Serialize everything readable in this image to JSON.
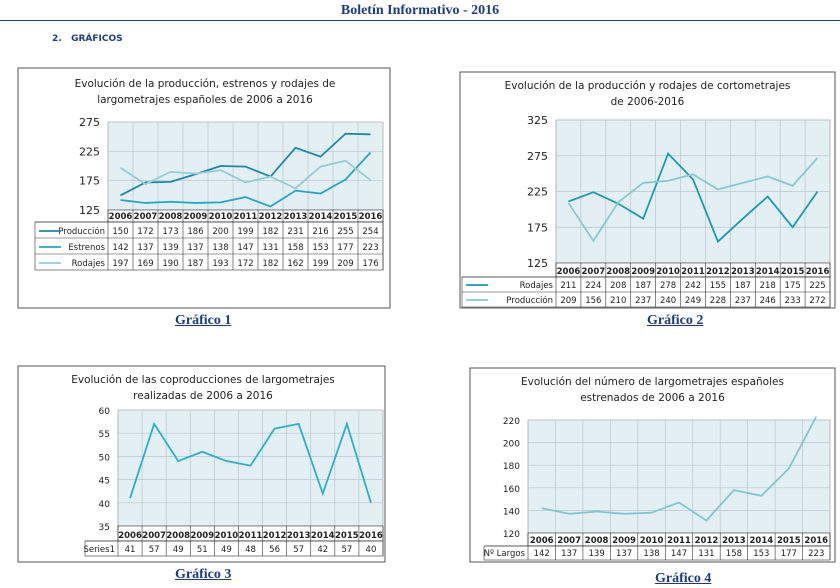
{
  "header": {
    "title": "Boletín Informativo - 2016"
  },
  "section": {
    "number": "2.",
    "title": "GRÁFICOS"
  },
  "chart_data": [
    {
      "type": "line",
      "title_lines": [
        "Evolución de la producción, estrenos y rodajes de",
        "largometrajes españoles de 2006 a 2016"
      ],
      "caption": "Gráfico 1",
      "categories": [
        "2006",
        "2007",
        "2008",
        "2009",
        "2010",
        "2011",
        "2012",
        "2013",
        "2014",
        "2015",
        "2016"
      ],
      "ylim": [
        125,
        275
      ],
      "yticks": [
        125,
        175,
        225,
        275
      ],
      "grid": true,
      "legend": "data-table",
      "series": [
        {
          "name": "Producción",
          "color": "#1a8aa8",
          "values": [
            150,
            172,
            173,
            186,
            200,
            199,
            182,
            231,
            216,
            255,
            254
          ]
        },
        {
          "name": "Estrenos",
          "color": "#27a7c3",
          "values": [
            142,
            137,
            139,
            137,
            138,
            147,
            131,
            158,
            153,
            177,
            223
          ]
        },
        {
          "name": "Rodajes",
          "color": "#93cdd9",
          "values": [
            197,
            169,
            190,
            187,
            193,
            172,
            182,
            162,
            199,
            209,
            176
          ]
        }
      ]
    },
    {
      "type": "line",
      "title_lines": [
        "Evolución de la  producción y  rodajes  de cortometrajes",
        "de 2006-2016"
      ],
      "caption": "Gráfico 2",
      "categories": [
        "2006",
        "2007",
        "2008",
        "2009",
        "2010",
        "2011",
        "2012",
        "2013",
        "2014",
        "2015",
        "2016"
      ],
      "ylim": [
        125,
        325
      ],
      "yticks": [
        125,
        175,
        225,
        275,
        325
      ],
      "grid": true,
      "legend": "data-table",
      "series": [
        {
          "name": "Rodajes",
          "color": "#1a9ab8",
          "values": [
            211,
            224,
            208,
            187,
            278,
            242,
            155,
            187,
            218,
            175,
            225
          ]
        },
        {
          "name": "Producción",
          "color": "#86c9d8",
          "values": [
            209,
            156,
            210,
            237,
            240,
            249,
            228,
            237,
            246,
            233,
            272
          ]
        }
      ]
    },
    {
      "type": "line",
      "title_lines": [
        "Evolución de las coproducciones de largometrajes",
        "realizadas  de  2006  a 2016"
      ],
      "caption": "Gráfico 3",
      "categories": [
        "2006",
        "2007",
        "2008",
        "2009",
        "2010",
        "2011",
        "2012",
        "2013",
        "2014",
        "2015",
        "2016"
      ],
      "ylim": [
        35,
        60
      ],
      "yticks": [
        35,
        40,
        45,
        50,
        55,
        60
      ],
      "grid": true,
      "legend": "data-table",
      "series": [
        {
          "name": "Series1",
          "color": "#2ab0d0",
          "values": [
            41,
            57,
            49,
            51,
            49,
            48,
            56,
            57,
            42,
            57,
            40
          ]
        }
      ]
    },
    {
      "type": "line",
      "title_lines": [
        "Evolución del número de largometrajes españoles",
        "estrenados de 2006 a 2016"
      ],
      "caption": "Gráfico 4",
      "categories": [
        "2006",
        "2007",
        "2008",
        "2009",
        "2010",
        "2011",
        "2012",
        "2013",
        "2014",
        "2015",
        "2016"
      ],
      "ylim": [
        120,
        220
      ],
      "yticks": [
        120,
        140,
        160,
        180,
        200,
        220
      ],
      "grid": true,
      "legend": "data-table",
      "series": [
        {
          "name": "Nº Largos",
          "color": "#7fc6d6",
          "values": [
            142,
            137,
            139,
            137,
            138,
            147,
            131,
            158,
            153,
            177,
            223
          ]
        }
      ]
    }
  ]
}
